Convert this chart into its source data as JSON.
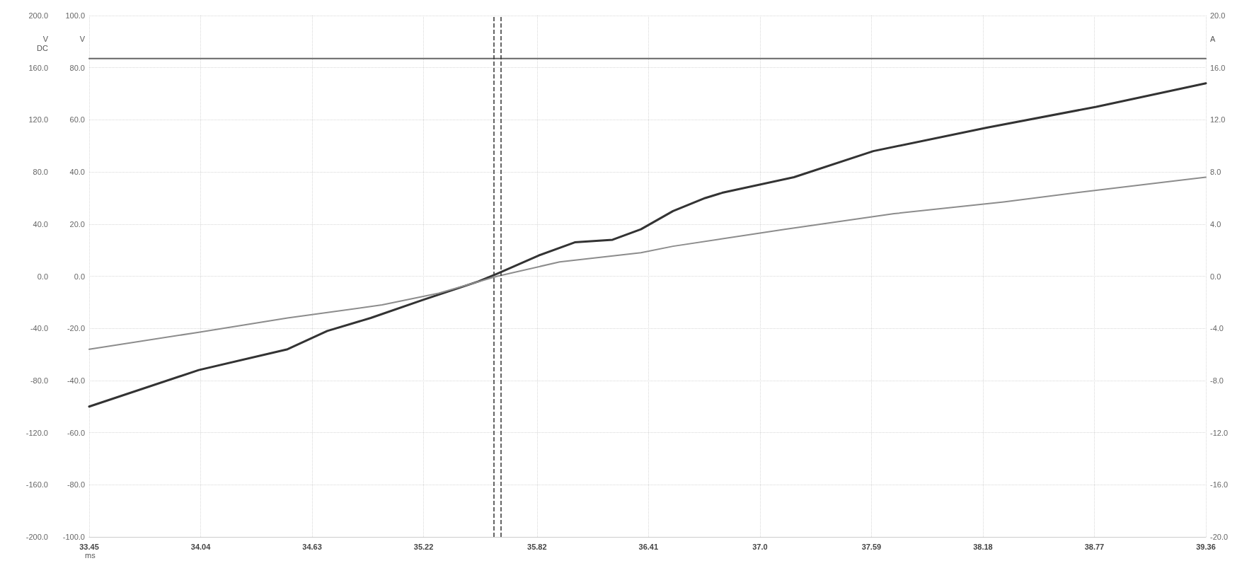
{
  "chart_data": {
    "type": "line",
    "xlabel": "ms",
    "ylabel": "V DC",
    "y2label": "V",
    "y3label": "A",
    "xlim": [
      33.45,
      39.36
    ],
    "xticks": [
      33.45,
      34.04,
      34.63,
      35.22,
      35.82,
      36.41,
      {
        "value": 37.0,
        "label": "37.0"
      },
      37.59,
      38.18,
      38.77,
      39.36
    ],
    "ylim": [
      -200,
      200
    ],
    "yticks": [
      {
        "value": -200,
        "label": "-200.0"
      },
      {
        "value": -160,
        "label": "-160.0"
      },
      {
        "value": -120,
        "label": "-120.0"
      },
      {
        "value": -80,
        "label": "-80.0"
      },
      {
        "value": -40,
        "label": "-40.0"
      },
      {
        "value": 0,
        "label": "0.0"
      },
      {
        "value": 40,
        "label": "40.0"
      },
      {
        "value": 80,
        "label": "80.0"
      },
      {
        "value": 120,
        "label": "120.0"
      },
      {
        "value": 160,
        "label": "160.0"
      },
      {
        "value": 200,
        "label": "200.0"
      }
    ],
    "y2lim": [
      -100,
      100
    ],
    "y2ticks": [
      {
        "value": -100,
        "label": "-100.0"
      },
      {
        "value": -80,
        "label": "-80.0"
      },
      {
        "value": -60,
        "label": "-60.0"
      },
      {
        "value": -40,
        "label": "-40.0"
      },
      {
        "value": -20,
        "label": "-20.0"
      },
      {
        "value": 0,
        "label": "0.0"
      },
      {
        "value": 20,
        "label": "20.0"
      },
      {
        "value": 40,
        "label": "40.0"
      },
      {
        "value": 60,
        "label": "60.0"
      },
      {
        "value": 80,
        "label": "80.0"
      },
      {
        "value": 100,
        "label": "100.0"
      }
    ],
    "y3lim": [
      -20,
      20
    ],
    "y3ticks": [
      {
        "value": -20,
        "label": "-20.0"
      },
      {
        "value": -16,
        "label": "-16.0"
      },
      {
        "value": -12,
        "label": "-12.0"
      },
      {
        "value": -8,
        "label": "-8.0"
      },
      {
        "value": -4,
        "label": "-4.0"
      },
      {
        "value": 0,
        "label": "0.0"
      },
      {
        "value": 4,
        "label": "4.0"
      },
      {
        "value": 8,
        "label": "8.0"
      },
      {
        "value": 12,
        "label": "12.0"
      },
      {
        "value": 16,
        "label": "16.0"
      },
      {
        "value": 20,
        "label": "20.0"
      }
    ],
    "grid": true,
    "marker": "none",
    "line_style": "solid",
    "series": [
      {
        "color": "#666666",
        "x": [
          33.45,
          39.36
        ],
        "values": [
          167,
          167
        ]
      },
      {
        "color": "#333333",
        "axis": "y2",
        "x": [
          33.45,
          34.03,
          34.5,
          34.71,
          34.94,
          35.22,
          35.51,
          35.61,
          35.83,
          36.02,
          36.22,
          36.37,
          36.54,
          36.71,
          36.8,
          37.18,
          37.6,
          38.2,
          38.78,
          39.36
        ],
        "values": [
          -50,
          -36,
          -28,
          -21,
          -16,
          -9,
          -2,
          1,
          8,
          13,
          14,
          18,
          25,
          30,
          32,
          38,
          48,
          57,
          65,
          74
        ]
      },
      {
        "color": "#8c8c8c",
        "axis": "y3",
        "x": [
          33.45,
          34.03,
          34.5,
          35.0,
          35.3,
          35.61,
          35.94,
          36.37,
          36.54,
          37.13,
          37.71,
          38.29,
          38.78,
          39.36
        ],
        "values": [
          -5.6,
          -4.3,
          -3.2,
          -2.2,
          -1.3,
          0.0,
          1.1,
          1.8,
          2.3,
          3.6,
          4.8,
          5.7,
          6.6,
          7.6
        ]
      }
    ],
    "ref_lines": [
      {
        "axis": "x",
        "value": 35.59,
        "color": "#333333",
        "line_style": "dashed"
      },
      {
        "axis": "x",
        "value": 35.63,
        "color": "#333333",
        "line_style": "dashed"
      }
    ]
  }
}
